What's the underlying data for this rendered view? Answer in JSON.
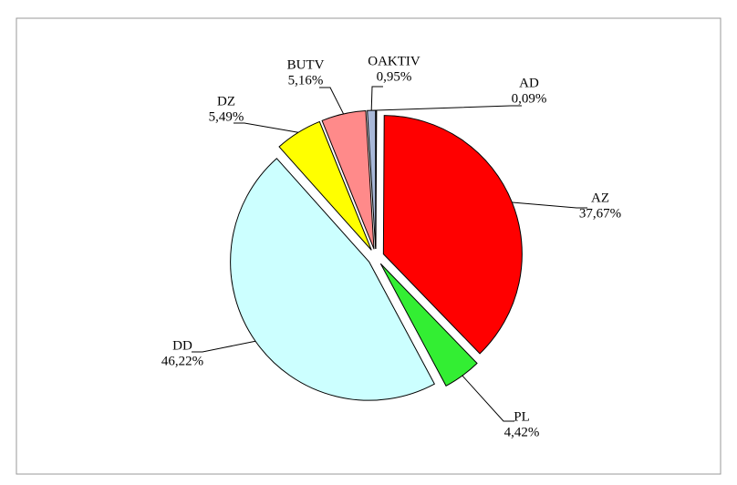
{
  "chart_data": {
    "type": "pie",
    "categories": [
      "AD",
      "AZ",
      "PL",
      "DD",
      "DZ",
      "BUTV",
      "OAKTIV"
    ],
    "values": [
      0.09,
      37.67,
      4.42,
      46.22,
      5.49,
      5.16,
      0.95
    ],
    "value_labels": [
      "0,09%",
      "37,67%",
      "4,42%",
      "46,22%",
      "5,49%",
      "5,16%",
      "0,95%"
    ],
    "colors": [
      "#6f86c8",
      "#ff0000",
      "#33ee33",
      "#ccffff",
      "#ffff00",
      "#ff8a8a",
      "#a8b8d8"
    ]
  }
}
